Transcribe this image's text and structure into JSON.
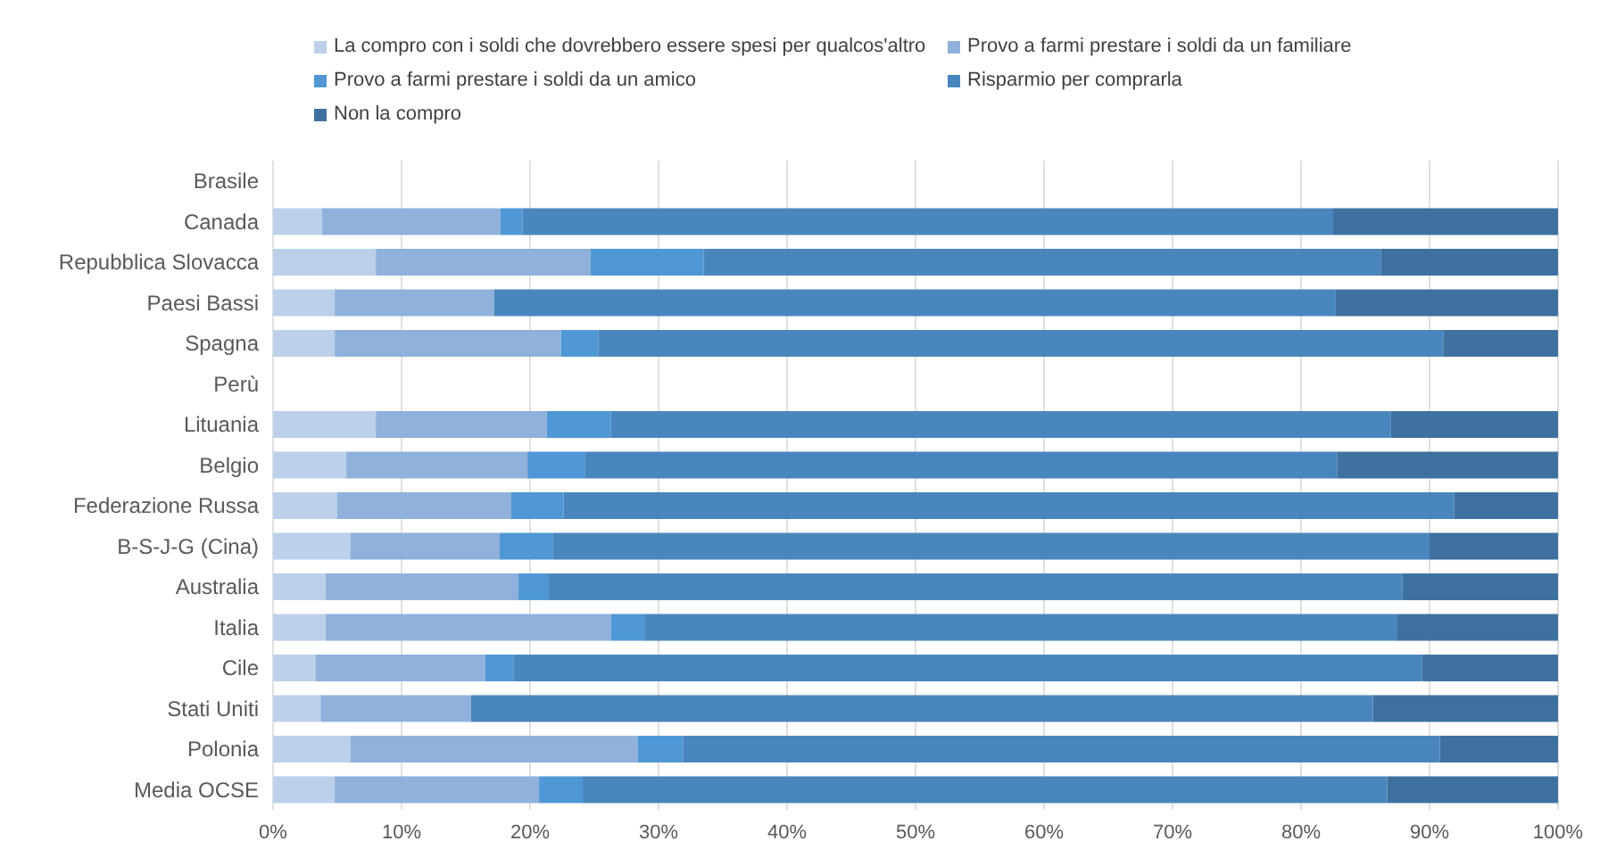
{
  "chart_data": {
    "type": "bar",
    "orientation": "horizontal",
    "stacked": true,
    "categories": [
      "Brasile",
      "Canada",
      "Repubblica Slovacca",
      "Paesi Bassi",
      "Spagna",
      "Perù",
      "Lituania",
      "Belgio",
      "Federazione Russa",
      "B-S-J-G (Cina)",
      "Australia",
      "Italia",
      "Cile",
      "Stati Uniti",
      "Polonia",
      "Media OCSE"
    ],
    "series": [
      {
        "name": "La compro con i soldi che dovrebbero essere spesi per qualcos'altro",
        "color": "#bcd0ea",
        "values": [
          null,
          3.8,
          8.0,
          4.8,
          4.8,
          null,
          8.0,
          5.7,
          5.0,
          6.0,
          4.1,
          4.1,
          3.3,
          3.7,
          6.0,
          4.8
        ]
      },
      {
        "name": "Provo a farmi prestare i soldi da un familiare",
        "color": "#8fb1dc",
        "values": [
          null,
          13.9,
          16.7,
          12.4,
          17.6,
          null,
          13.3,
          14.1,
          13.5,
          11.6,
          15.0,
          22.2,
          13.2,
          11.7,
          22.4,
          15.9
        ]
      },
      {
        "name": "Provo a farmi prestare i soldi da un amico",
        "color": "#5097d5",
        "values": [
          null,
          1.7,
          8.8,
          0,
          2.9,
          null,
          5.0,
          4.5,
          4.1,
          4.2,
          2.3,
          2.6,
          2.2,
          0,
          3.5,
          3.4
        ]
      },
      {
        "name": "Risparmio per comprarla",
        "color": "#4a86be",
        "values": [
          null,
          63.1,
          52.7,
          65.5,
          65.8,
          null,
          60.7,
          58.5,
          69.3,
          68.2,
          66.5,
          58.6,
          70.7,
          70.2,
          58.9,
          62.6
        ]
      },
      {
        "name": "Non la compro",
        "color": "#3e71a0",
        "values": [
          null,
          17.5,
          13.8,
          17.3,
          8.9,
          null,
          13.0,
          17.2,
          8.1,
          10.0,
          12.1,
          12.5,
          10.6,
          14.4,
          9.2,
          13.3
        ]
      }
    ],
    "xlim": [
      0,
      100
    ],
    "xticks": [
      {
        "value": 0,
        "label": "0%"
      },
      {
        "value": 10,
        "label": "10%"
      },
      {
        "value": 20,
        "label": "20%"
      },
      {
        "value": 30,
        "label": "30%"
      },
      {
        "value": 40,
        "label": "40%"
      },
      {
        "value": 50,
        "label": "50%"
      },
      {
        "value": 60,
        "label": "60%"
      },
      {
        "value": 70,
        "label": "70%"
      },
      {
        "value": 80,
        "label": "80%"
      },
      {
        "value": 90,
        "label": "90%"
      },
      {
        "value": 100,
        "label": "100%"
      }
    ],
    "grid": "x",
    "legend": "top"
  }
}
